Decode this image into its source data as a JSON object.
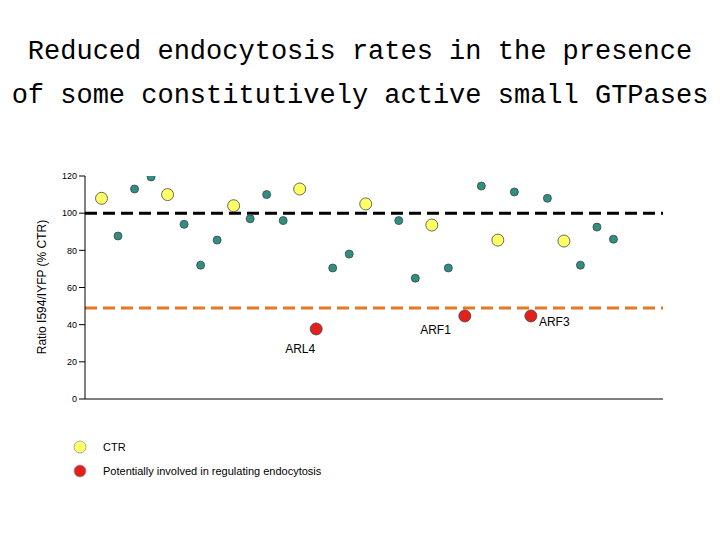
{
  "chart_data": {
    "type": "scatter",
    "title": "Reduced endocytosis rates in the presence\nof some constitutively active small GTPases",
    "y_label": "Ratio I594/IYFP (% CTR)",
    "xlim": [
      0,
      35
    ],
    "ylim": [
      0,
      120
    ],
    "yticks": [
      0,
      20,
      40,
      60,
      80,
      100,
      120
    ],
    "tick_labels": "y",
    "grid": false,
    "legend": "bottom left",
    "reference_lines": [
      {
        "value": 100,
        "color": "#000000",
        "line_style": "dashed"
      },
      {
        "value": 49,
        "color": "#e87722",
        "line_style": "dashed"
      }
    ],
    "series": [
      {
        "name": "CTR",
        "color": "#ffff66",
        "marker": "circle",
        "x": [
          1,
          5,
          9,
          13,
          17,
          21,
          25,
          29
        ],
        "values": [
          108,
          110,
          104,
          113,
          105,
          93.6,
          85.5,
          85
        ]
      },
      {
        "color": "#2f8f83",
        "marker": "circle",
        "x": [
          2,
          3,
          4,
          6,
          7,
          8,
          10,
          11,
          12,
          15,
          16,
          19,
          20,
          22,
          24,
          26,
          28,
          30,
          31,
          32
        ],
        "values": [
          87.7,
          113,
          119.5,
          94,
          72,
          85.5,
          97,
          110,
          96,
          70.5,
          78,
          96,
          65,
          70.5,
          114.6,
          111.4,
          108,
          72,
          92.5,
          86
        ]
      },
      {
        "name": "Potentially involved in regulating endocytosis",
        "color": "#e3211c",
        "marker": "circle",
        "x": [
          14,
          23,
          27
        ],
        "values": [
          37.7,
          44.7,
          44.7
        ],
        "labels": [
          "ARL4",
          "ARF1",
          "ARF3"
        ]
      }
    ]
  }
}
